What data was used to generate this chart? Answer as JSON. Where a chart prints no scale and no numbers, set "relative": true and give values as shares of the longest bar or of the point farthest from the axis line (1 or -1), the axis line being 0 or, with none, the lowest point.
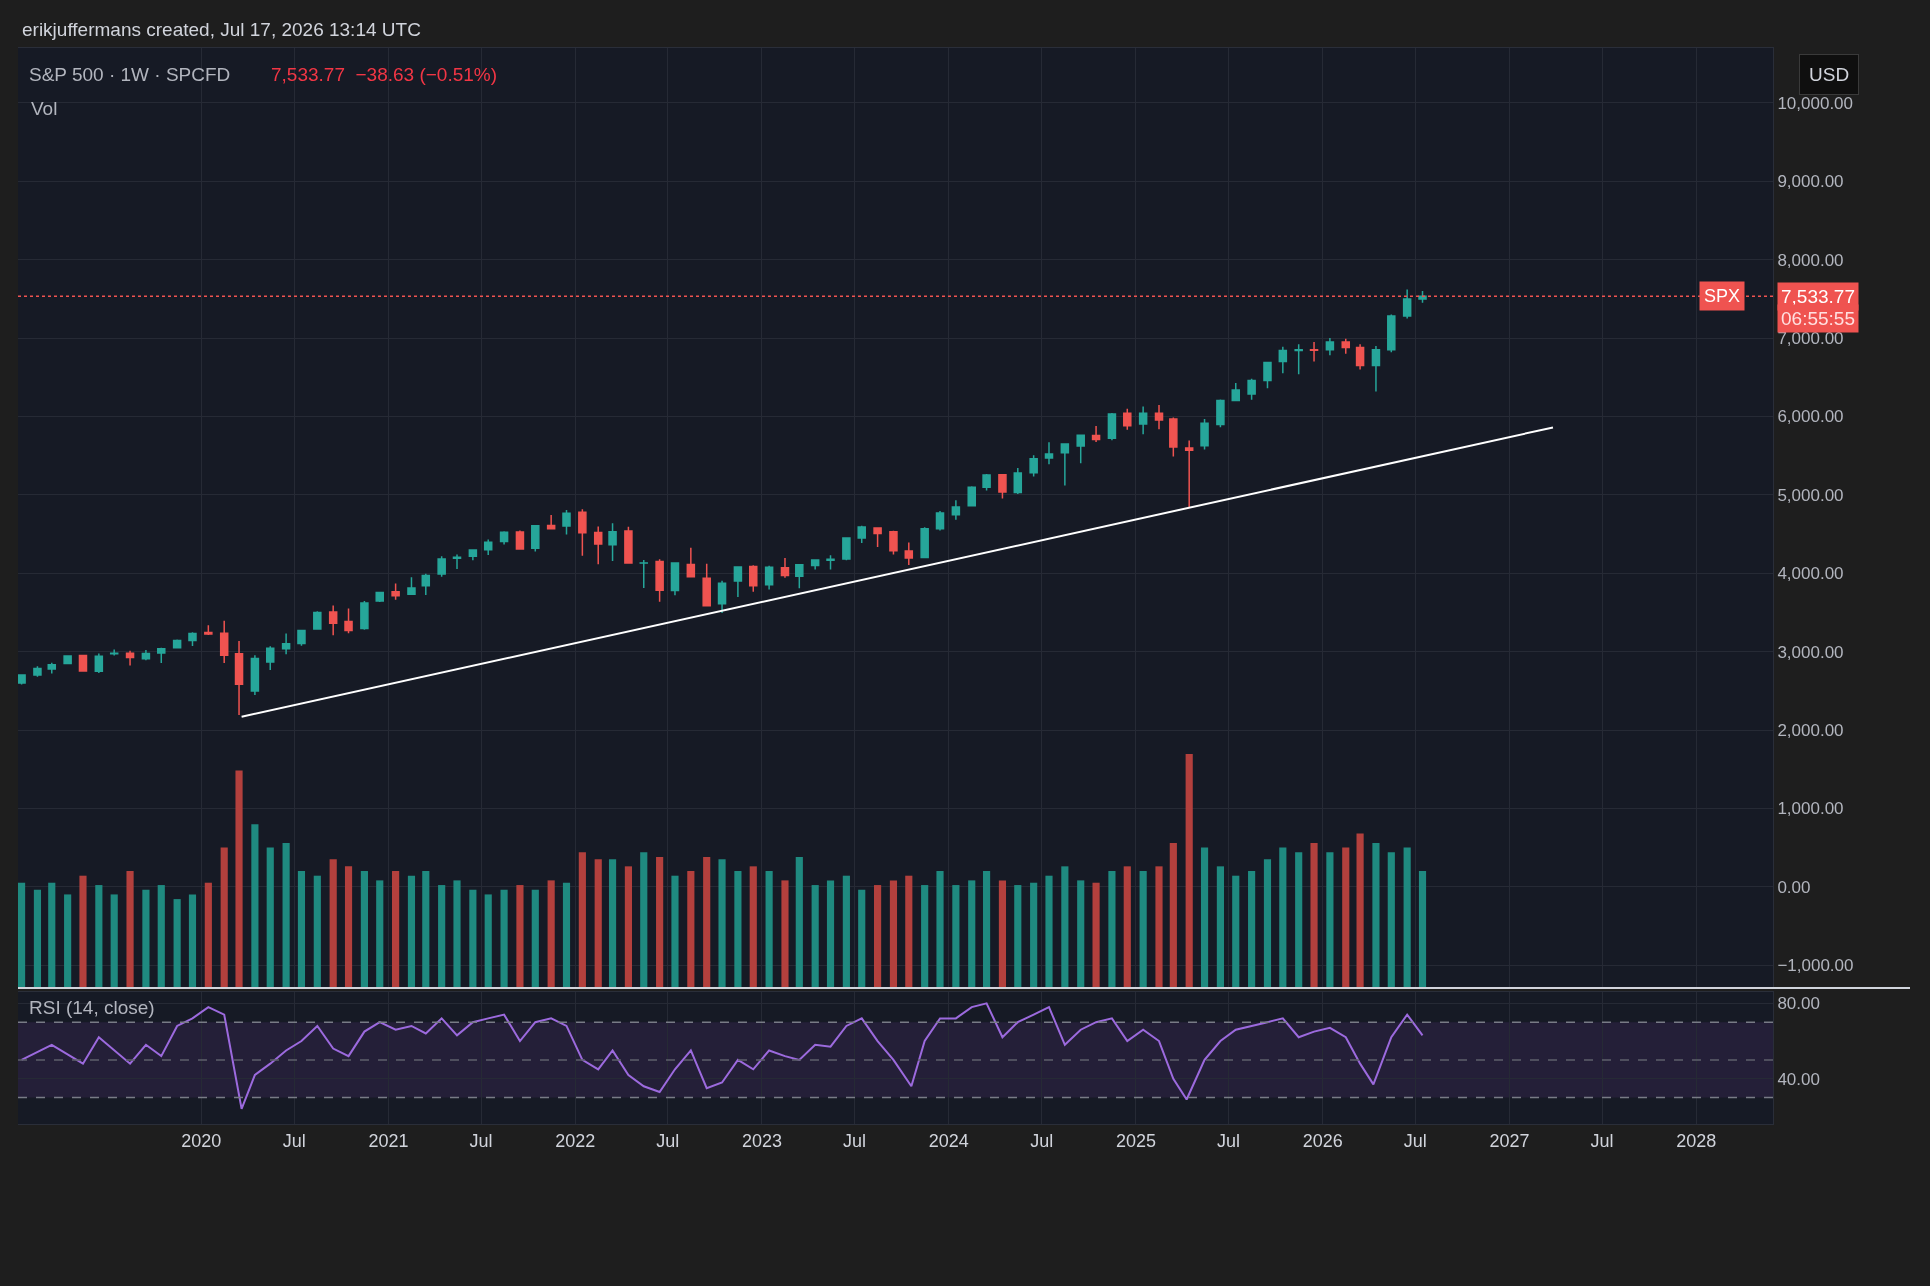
{
  "chart_data": [
    {
      "type": "candlestick",
      "title": "S&P 500 · 1W · SPCFD",
      "subtitle": "7,533.77  −38.63 (−0.51%)",
      "annotations": [
        "erikjuffermans created, Jul 17, 2026 13:14 UTC",
        "USD",
        "7,533.77",
        "06:55:55"
      ],
      "x": [
        "2019-01-15",
        "2019-02-15",
        "2019-03-15",
        "2019-04-15",
        "2019-05-15",
        "2019-06-15",
        "2019-07-15",
        "2019-08-15",
        "2019-09-15",
        "2019-10-15",
        "2019-11-15",
        "2019-12-15",
        "2020-01-15",
        "2020-02-15",
        "2020-03-15",
        "2020-04-15",
        "2020-05-15",
        "2020-06-15",
        "2020-07-15",
        "2020-08-15",
        "2020-09-15",
        "2020-10-15",
        "2020-11-15",
        "2020-12-15",
        "2021-01-15",
        "2021-02-15",
        "2021-03-15",
        "2021-04-15",
        "2021-05-15",
        "2021-06-15",
        "2021-07-15",
        "2021-08-15",
        "2021-09-15",
        "2021-10-15",
        "2021-11-15",
        "2021-12-15",
        "2022-01-15",
        "2022-02-15",
        "2022-03-15",
        "2022-04-15",
        "2022-05-15",
        "2022-06-15",
        "2022-07-15",
        "2022-08-15",
        "2022-09-15",
        "2022-10-15",
        "2022-11-15",
        "2022-12-15",
        "2023-01-15",
        "2023-02-15",
        "2023-03-15",
        "2023-04-15",
        "2023-05-15",
        "2023-06-15",
        "2023-07-15",
        "2023-08-15",
        "2023-09-15",
        "2023-10-15",
        "2023-11-15",
        "2023-12-15",
        "2024-01-15",
        "2024-02-15",
        "2024-03-15",
        "2024-04-15",
        "2024-05-15",
        "2024-06-15",
        "2024-07-15",
        "2024-08-15",
        "2024-09-15",
        "2024-10-15",
        "2024-11-15",
        "2024-12-15",
        "2025-01-15",
        "2025-02-15",
        "2025-03-15",
        "2025-04-15",
        "2025-05-15",
        "2025-06-15",
        "2025-07-15",
        "2025-08-15",
        "2025-09-15",
        "2025-10-15",
        "2025-11-15",
        "2025-12-15",
        "2026-01-15",
        "2026-02-15",
        "2026-03-15",
        "2026-04-15",
        "2026-05-15",
        "2026-06-15",
        "2026-07-15"
      ],
      "ohlc": [
        [
          2600,
          2708,
          2580,
          2704
        ],
        [
          2703,
          2813,
          2681,
          2784
        ],
        [
          2780,
          2860,
          2722,
          2834
        ],
        [
          2848,
          2949,
          2848,
          2946
        ],
        [
          2952,
          2954,
          2751,
          2752
        ],
        [
          2751,
          2977,
          2728,
          2942
        ],
        [
          2972,
          3028,
          2952,
          2980
        ],
        [
          2981,
          3013,
          2822,
          2926
        ],
        [
          2910,
          3022,
          2891,
          2977
        ],
        [
          2983,
          3050,
          2856,
          3038
        ],
        [
          3050,
          3154,
          3050,
          3141
        ],
        [
          3144,
          3248,
          3071,
          3231
        ],
        [
          3244,
          3338,
          3214,
          3226
        ],
        [
          3235,
          3394,
          2855,
          2954
        ],
        [
          2974,
          3136,
          2192,
          2585
        ],
        [
          2499,
          2955,
          2447,
          2912
        ],
        [
          2869,
          3068,
          2767,
          3044
        ],
        [
          3038,
          3233,
          2966,
          3100
        ],
        [
          3105,
          3280,
          3074,
          3271
        ],
        [
          3289,
          3514,
          3284,
          3500
        ],
        [
          3507,
          3588,
          3209,
          3363
        ],
        [
          3385,
          3550,
          3234,
          3270
        ],
        [
          3296,
          3646,
          3280,
          3622
        ],
        [
          3645,
          3760,
          3633,
          3756
        ],
        [
          3764,
          3870,
          3663,
          3714
        ],
        [
          3731,
          3950,
          3725,
          3811
        ],
        [
          3842,
          3994,
          3723,
          3973
        ],
        [
          3992,
          4218,
          3955,
          4181
        ],
        [
          4191,
          4238,
          4056,
          4204
        ],
        [
          4217,
          4302,
          4165,
          4298
        ],
        [
          4300,
          4430,
          4233,
          4395
        ],
        [
          4406,
          4537,
          4367,
          4523
        ],
        [
          4528,
          4546,
          4306,
          4308
        ],
        [
          4318,
          4608,
          4279,
          4605
        ],
        [
          4610,
          4743,
          4560,
          4567
        ],
        [
          4602,
          4808,
          4495,
          4766
        ],
        [
          4778,
          4818,
          4223,
          4516
        ],
        [
          4519,
          4595,
          4115,
          4374
        ],
        [
          4363,
          4637,
          4157,
          4530
        ],
        [
          4540,
          4593,
          4131,
          4132
        ],
        [
          4131,
          4170,
          3811,
          4132
        ],
        [
          4150,
          4178,
          3637,
          3785
        ],
        [
          3781,
          4140,
          3721,
          4130
        ],
        [
          4112,
          4325,
          3954,
          3955
        ],
        [
          3937,
          4120,
          3584,
          3586
        ],
        [
          3610,
          3906,
          3492,
          3872
        ],
        [
          3901,
          4080,
          3698,
          4080
        ],
        [
          4087,
          4101,
          3764,
          3840
        ],
        [
          3853,
          4095,
          3794,
          4077
        ],
        [
          4070,
          4195,
          3943,
          3970
        ],
        [
          3963,
          4110,
          3809,
          4109
        ],
        [
          4100,
          4170,
          4049,
          4169
        ],
        [
          4166,
          4231,
          4048,
          4180
        ],
        [
          4183,
          4458,
          4166,
          4450
        ],
        [
          4450,
          4607,
          4385,
          4589
        ],
        [
          4578,
          4584,
          4335,
          4508
        ],
        [
          4530,
          4541,
          4238,
          4288
        ],
        [
          4284,
          4393,
          4104,
          4194
        ],
        [
          4201,
          4587,
          4197,
          4568
        ],
        [
          4568,
          4793,
          4547,
          4770
        ],
        [
          4745,
          4931,
          4682,
          4846
        ],
        [
          4861,
          5111,
          4853,
          5096
        ],
        [
          5098,
          5265,
          5057,
          5254
        ],
        [
          5257,
          5264,
          4954,
          5036
        ],
        [
          5029,
          5342,
          5012,
          5278
        ],
        [
          5283,
          5506,
          5235,
          5460
        ],
        [
          5471,
          5670,
          5390,
          5522
        ],
        [
          5537,
          5651,
          5120,
          5648
        ],
        [
          5623,
          5768,
          5403,
          5762
        ],
        [
          5758,
          5878,
          5675,
          5705
        ],
        [
          5723,
          6044,
          5696,
          6032
        ],
        [
          6040,
          6100,
          5832,
          5882
        ],
        [
          5903,
          6128,
          5773,
          6041
        ],
        [
          6041,
          6147,
          5837,
          5955
        ],
        [
          5968,
          5986,
          5489,
          5612
        ],
        [
          5597,
          5695,
          4835,
          5569
        ],
        [
          5625,
          5968,
          5578,
          5912
        ],
        [
          5897,
          6215,
          5862,
          6205
        ],
        [
          6205,
          6427,
          6201,
          6339
        ],
        [
          6287,
          6481,
          6213,
          6460
        ],
        [
          6460,
          6699,
          6360,
          6688
        ],
        [
          6700,
          6890,
          6550,
          6840
        ],
        [
          6840,
          6920,
          6540,
          6850
        ],
        [
          6850,
          6950,
          6700,
          6845
        ],
        [
          6850,
          7000,
          6780,
          6950
        ],
        [
          6950,
          6990,
          6800,
          6880
        ],
        [
          6880,
          6920,
          6600,
          6650
        ],
        [
          6650,
          6900,
          6320,
          6850
        ],
        [
          6850,
          7300,
          6820,
          7280
        ],
        [
          7280,
          7620,
          7250,
          7500
        ],
        [
          7500,
          7600,
          7450,
          7534
        ]
      ],
      "series": [
        {
          "type": "line",
          "color": "#ffffff",
          "x": [
            "2020-03-20",
            "2027-03-27"
          ],
          "values": [
            2170,
            5860
          ]
        }
      ],
      "xlim": [
        "2019-01-08",
        "2028-05-30"
      ],
      "xticks": [
        {
          "value": "2020-01-01",
          "label": null
        },
        {
          "value": "2020-07-01",
          "label": null
        },
        {
          "value": "2021-01-01",
          "label": null
        },
        {
          "value": "2021-07-01",
          "label": null
        },
        {
          "value": "2022-01-01",
          "label": null
        },
        {
          "value": "2022-07-01",
          "label": null
        },
        {
          "value": "2023-01-01",
          "label": null
        },
        {
          "value": "2023-07-01",
          "label": null
        },
        {
          "value": "2024-01-01",
          "label": null
        },
        {
          "value": "2024-07-01",
          "label": null
        },
        {
          "value": "2025-01-01",
          "label": null
        },
        {
          "value": "2025-07-01",
          "label": null
        },
        {
          "value": "2026-01-01",
          "label": null
        },
        {
          "value": "2026-07-01",
          "label": null
        },
        {
          "value": "2027-01-01",
          "label": null
        },
        {
          "value": "2027-07-01",
          "label": null
        },
        {
          "value": "2028-01-01",
          "label": null
        }
      ],
      "ylim": [
        -1290,
        10700
      ],
      "yticks": [
        {
          "value": -1000,
          "label": "−1,000.00"
        },
        {
          "value": 0,
          "label": "0.00"
        },
        {
          "value": 1000,
          "label": "1,000.00"
        },
        {
          "value": 2000,
          "label": "2,000.00"
        },
        {
          "value": 3000,
          "label": "3,000.00"
        },
        {
          "value": 4000,
          "label": "4,000.00"
        },
        {
          "value": 5000,
          "label": "5,000.00"
        },
        {
          "value": 6000,
          "label": "6,000.00"
        },
        {
          "value": 7000,
          "label": "7,000.00"
        },
        {
          "value": 8000,
          "label": "8,000.00"
        },
        {
          "value": 9000,
          "label": "9,000.00"
        },
        {
          "value": 10000,
          "label": "10,000.00"
        }
      ],
      "ref_lines": [
        {
          "axis": "y",
          "value": 7533.77,
          "label": "SPX",
          "color": "#ef5350",
          "line_style": "dotted"
        }
      ],
      "grid": true,
      "tick_labels": "y"
    },
    {
      "type": "bar",
      "title": "Vol",
      "relative": true,
      "tick_labels": false,
      "x": [
        "2019-01-15",
        "2019-02-15",
        "2019-03-15",
        "2019-04-15",
        "2019-05-15",
        "2019-06-15",
        "2019-07-15",
        "2019-08-15",
        "2019-09-15",
        "2019-10-15",
        "2019-11-15",
        "2019-12-15",
        "2020-01-15",
        "2020-02-15",
        "2020-03-15",
        "2020-04-15",
        "2020-05-15",
        "2020-06-15",
        "2020-07-15",
        "2020-08-15",
        "2020-09-15",
        "2020-10-15",
        "2020-11-15",
        "2020-12-15",
        "2021-01-15",
        "2021-02-15",
        "2021-03-15",
        "2021-04-15",
        "2021-05-15",
        "2021-06-15",
        "2021-07-15",
        "2021-08-15",
        "2021-09-15",
        "2021-10-15",
        "2021-11-15",
        "2021-12-15",
        "2022-01-15",
        "2022-02-15",
        "2022-03-15",
        "2022-04-15",
        "2022-05-15",
        "2022-06-15",
        "2022-07-15",
        "2022-08-15",
        "2022-09-15",
        "2022-10-15",
        "2022-11-15",
        "2022-12-15",
        "2023-01-15",
        "2023-02-15",
        "2023-03-15",
        "2023-04-15",
        "2023-05-15",
        "2023-06-15",
        "2023-07-15",
        "2023-08-15",
        "2023-09-15",
        "2023-10-15",
        "2023-11-15",
        "2023-12-15",
        "2024-01-15",
        "2024-02-15",
        "2024-03-15",
        "2024-04-15",
        "2024-05-15",
        "2024-06-15",
        "2024-07-15",
        "2024-08-15",
        "2024-09-15",
        "2024-10-15",
        "2024-11-15",
        "2024-12-15",
        "2025-01-15",
        "2025-02-15",
        "2025-03-15",
        "2025-04-15",
        "2025-05-15",
        "2025-06-15",
        "2025-07-15",
        "2025-08-15",
        "2025-09-15",
        "2025-10-15",
        "2025-11-15",
        "2025-12-15",
        "2026-01-15",
        "2026-02-15",
        "2026-03-15",
        "2026-04-15",
        "2026-05-15",
        "2026-06-15",
        "2026-07-15"
      ],
      "values": [
        0.45,
        0.42,
        0.45,
        0.4,
        0.48,
        0.44,
        0.4,
        0.5,
        0.42,
        0.44,
        0.38,
        0.4,
        0.45,
        0.6,
        0.93,
        0.7,
        0.6,
        0.62,
        0.5,
        0.48,
        0.55,
        0.52,
        0.5,
        0.46,
        0.5,
        0.48,
        0.5,
        0.44,
        0.46,
        0.42,
        0.4,
        0.42,
        0.44,
        0.42,
        0.46,
        0.45,
        0.58,
        0.55,
        0.55,
        0.52,
        0.58,
        0.56,
        0.48,
        0.5,
        0.56,
        0.55,
        0.5,
        0.52,
        0.5,
        0.46,
        0.56,
        0.44,
        0.46,
        0.48,
        0.42,
        0.44,
        0.46,
        0.48,
        0.44,
        0.5,
        0.44,
        0.46,
        0.5,
        0.46,
        0.44,
        0.45,
        0.48,
        0.52,
        0.46,
        0.45,
        0.5,
        0.52,
        0.5,
        0.52,
        0.62,
        1,
        0.6,
        0.52,
        0.48,
        0.5,
        0.55,
        0.6,
        0.58,
        0.62,
        0.58,
        0.6,
        0.66,
        0.62,
        0.58,
        0.6,
        0.5
      ],
      "colors": [
        "#1f8a80",
        "#1f8a80",
        "#1f8a80",
        "#1f8a80",
        "#b3403d",
        "#1f8a80",
        "#1f8a80",
        "#b3403d",
        "#1f8a80",
        "#1f8a80",
        "#1f8a80",
        "#1f8a80",
        "#b3403d",
        "#b3403d",
        "#b3403d",
        "#1f8a80",
        "#1f8a80",
        "#1f8a80",
        "#1f8a80",
        "#1f8a80",
        "#b3403d",
        "#b3403d",
        "#1f8a80",
        "#1f8a80",
        "#b3403d",
        "#1f8a80",
        "#1f8a80",
        "#1f8a80",
        "#1f8a80",
        "#1f8a80",
        "#1f8a80",
        "#1f8a80",
        "#b3403d",
        "#1f8a80",
        "#b3403d",
        "#1f8a80",
        "#b3403d",
        "#b3403d",
        "#1f8a80",
        "#b3403d",
        "#1f8a80",
        "#b3403d",
        "#1f8a80",
        "#b3403d",
        "#b3403d",
        "#1f8a80",
        "#1f8a80",
        "#b3403d",
        "#1f8a80",
        "#b3403d",
        "#1f8a80",
        "#1f8a80",
        "#1f8a80",
        "#1f8a80",
        "#1f8a80",
        "#b3403d",
        "#b3403d",
        "#b3403d",
        "#1f8a80",
        "#1f8a80",
        "#1f8a80",
        "#1f8a80",
        "#1f8a80",
        "#b3403d",
        "#1f8a80",
        "#1f8a80",
        "#1f8a80",
        "#1f8a80",
        "#1f8a80",
        "#b3403d",
        "#1f8a80",
        "#b3403d",
        "#1f8a80",
        "#b3403d",
        "#b3403d",
        "#b3403d",
        "#1f8a80",
        "#1f8a80",
        "#1f8a80",
        "#1f8a80",
        "#1f8a80",
        "#1f8a80",
        "#1f8a80",
        "#b3403d",
        "#1f8a80",
        "#b3403d",
        "#b3403d",
        "#1f8a80",
        "#1f8a80",
        "#1f8a80",
        "#1f8a80"
      ],
      "xlim": [
        "2019-01-08",
        "2028-05-30"
      ]
    },
    {
      "type": "line",
      "title": "RSI (14, close)",
      "x": [
        "2019-01-15",
        "2019-03-15",
        "2019-05-15",
        "2019-06-15",
        "2019-08-15",
        "2019-09-15",
        "2019-10-15",
        "2019-11-15",
        "2019-12-15",
        "2020-01-15",
        "2020-02-15",
        "2020-03-20",
        "2020-04-15",
        "2020-05-15",
        "2020-06-15",
        "2020-07-15",
        "2020-08-15",
        "2020-09-15",
        "2020-10-15",
        "2020-11-15",
        "2020-12-15",
        "2021-01-15",
        "2021-02-15",
        "2021-03-15",
        "2021-04-15",
        "2021-05-15",
        "2021-06-15",
        "2021-07-15",
        "2021-08-15",
        "2021-09-15",
        "2021-10-15",
        "2021-11-15",
        "2021-12-15",
        "2022-01-15",
        "2022-02-15",
        "2022-03-15",
        "2022-04-15",
        "2022-05-15",
        "2022-06-15",
        "2022-07-15",
        "2022-08-15",
        "2022-09-15",
        "2022-10-15",
        "2022-11-15",
        "2022-12-15",
        "2023-01-15",
        "2023-02-15",
        "2023-03-15",
        "2023-04-15",
        "2023-05-15",
        "2023-06-15",
        "2023-07-15",
        "2023-08-15",
        "2023-09-15",
        "2023-10-20",
        "2023-11-15",
        "2023-12-15",
        "2024-01-15",
        "2024-02-15",
        "2024-03-15",
        "2024-04-15",
        "2024-05-15",
        "2024-06-15",
        "2024-07-15",
        "2024-08-15",
        "2024-09-15",
        "2024-10-15",
        "2024-11-15",
        "2024-12-15",
        "2025-01-15",
        "2025-02-15",
        "2025-03-15",
        "2025-04-10",
        "2025-05-15",
        "2025-06-15",
        "2025-07-15",
        "2025-08-15",
        "2025-09-15",
        "2025-10-15",
        "2025-11-15",
        "2025-12-15",
        "2026-01-15",
        "2026-02-15",
        "2026-03-15",
        "2026-04-10",
        "2026-05-15",
        "2026-06-15",
        "2026-07-15"
      ],
      "series": [
        {
          "color": "#9c6ade",
          "values": [
            50,
            58,
            48,
            62,
            48,
            58,
            52,
            68,
            72,
            78,
            74,
            24,
            42,
            48,
            55,
            60,
            68,
            56,
            52,
            65,
            70,
            66,
            68,
            64,
            72,
            63,
            70,
            72,
            74,
            60,
            70,
            72,
            68,
            50,
            45,
            55,
            42,
            36,
            33,
            45,
            55,
            35,
            38,
            50,
            45,
            55,
            52,
            50,
            58,
            57,
            68,
            72,
            60,
            50,
            36,
            60,
            72,
            72,
            78,
            80,
            62,
            70,
            74,
            78,
            58,
            66,
            70,
            72,
            60,
            66,
            60,
            40,
            29,
            50,
            60,
            66,
            68,
            70,
            72,
            62,
            65,
            67,
            62,
            48,
            37,
            62,
            74,
            63
          ]
        }
      ],
      "xlim": [
        "2019-01-08",
        "2028-05-30"
      ],
      "xticks": [
        {
          "value": "2020-01-01",
          "label": "2020"
        },
        {
          "value": "2020-07-01",
          "label": "Jul"
        },
        {
          "value": "2021-01-01",
          "label": "2021"
        },
        {
          "value": "2021-07-01",
          "label": "Jul"
        },
        {
          "value": "2022-01-01",
          "label": "2022"
        },
        {
          "value": "2022-07-01",
          "label": "Jul"
        },
        {
          "value": "2023-01-01",
          "label": "2023"
        },
        {
          "value": "2023-07-01",
          "label": "Jul"
        },
        {
          "value": "2024-01-01",
          "label": "2024"
        },
        {
          "value": "2024-07-01",
          "label": "Jul"
        },
        {
          "value": "2025-01-01",
          "label": "2025"
        },
        {
          "value": "2025-07-01",
          "label": "Jul"
        },
        {
          "value": "2026-01-01",
          "label": "2026"
        },
        {
          "value": "2026-07-01",
          "label": "Jul"
        },
        {
          "value": "2027-01-01",
          "label": "2027"
        },
        {
          "value": "2027-07-01",
          "label": "Jul"
        },
        {
          "value": "2028-01-01",
          "label": "2028"
        }
      ],
      "ylim": [
        16,
        86
      ],
      "yticks": [
        {
          "value": 40,
          "label": "40.00"
        },
        {
          "value": 80,
          "label": "80.00"
        }
      ],
      "ref_lines": [
        {
          "axis": "y",
          "value": 70,
          "line_style": "dashed",
          "color": "#787b86"
        },
        {
          "axis": "y",
          "value": 50,
          "line_style": "dashed",
          "color": "#5d606b"
        },
        {
          "axis": "y",
          "value": 30,
          "line_style": "dashed",
          "color": "#787b86"
        }
      ],
      "bands": [
        {
          "axis": "y",
          "from": 30,
          "to": 70,
          "color": "#241f38"
        }
      ],
      "grid": true
    }
  ]
}
